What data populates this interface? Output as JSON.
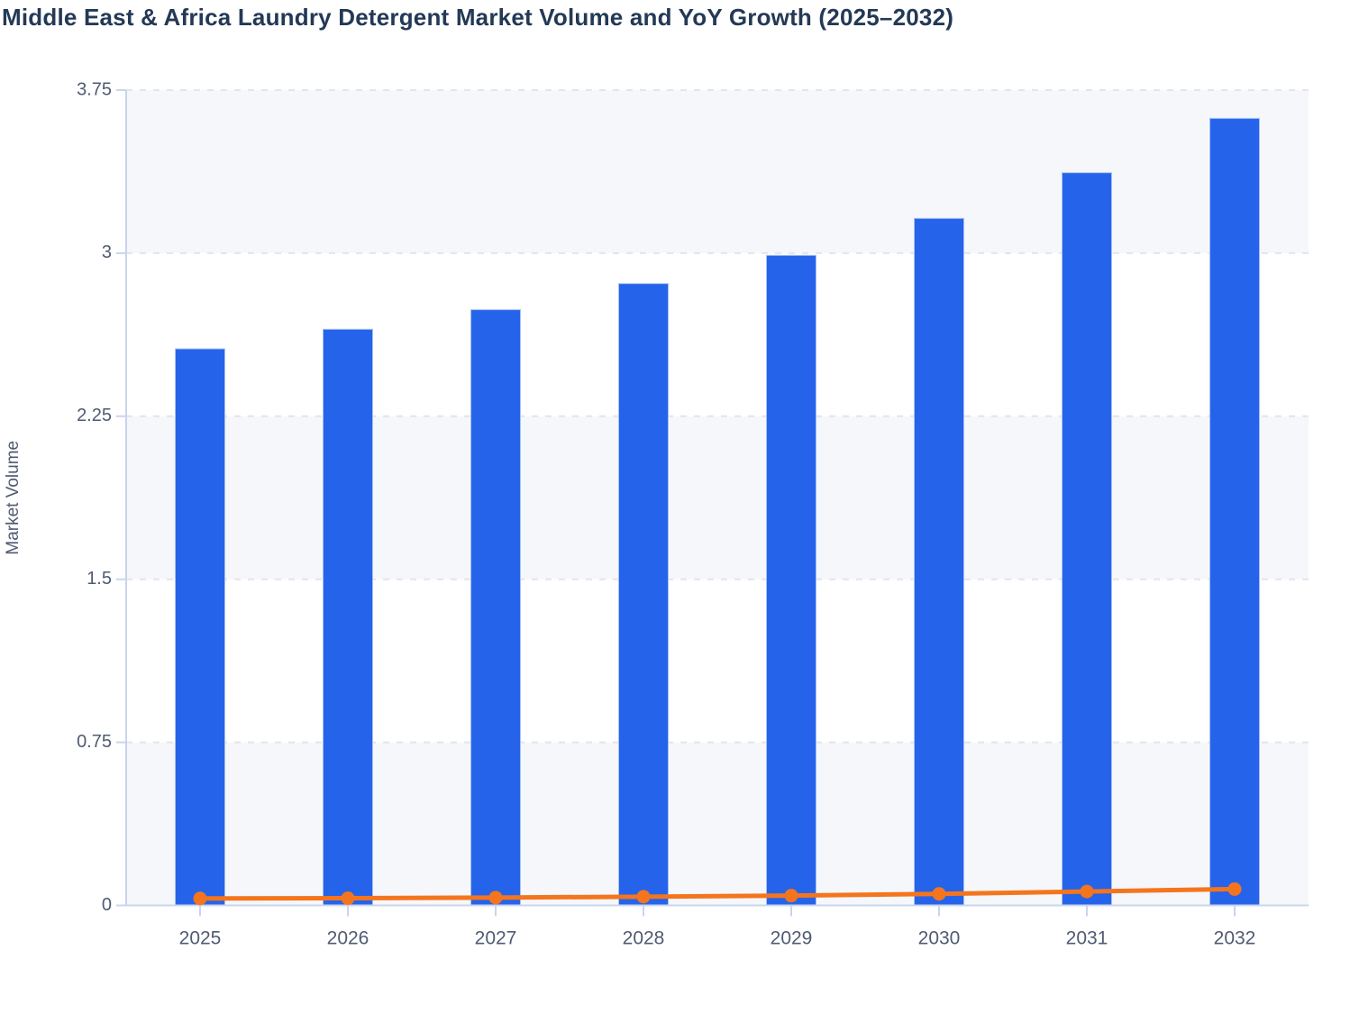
{
  "chart_data": {
    "type": "bar",
    "combo": "bar+line",
    "title": "Middle East & Africa Laundry Detergent Market Volume and YoY Growth (2025–2032)",
    "categories": [
      "2025",
      "2026",
      "2027",
      "2028",
      "2029",
      "2030",
      "2031",
      "2032"
    ],
    "series": [
      {
        "name": "Market Volume",
        "type": "bar",
        "values": [
          2.56,
          2.65,
          2.74,
          2.86,
          2.99,
          3.16,
          3.37,
          3.62
        ],
        "color": "#2563eb",
        "bar_border_color": "#a7c1f2"
      },
      {
        "name": "YoY Growth",
        "type": "line",
        "values_pct": [
          3.2,
          3.3,
          3.6,
          4.0,
          4.5,
          5.3,
          6.4,
          7.5
        ],
        "color": "#f4751d",
        "plotted_as": "fraction of volume axis (pct/100)"
      }
    ],
    "xlabel": "",
    "ylabel": "Market Volume",
    "ylim": [
      0,
      3.75
    ],
    "y_tick_labels": [
      "0",
      "0.75",
      "1.5",
      "2.25",
      "3",
      "3.75"
    ],
    "x_tick_labels": [
      "2025",
      "2026",
      "2027",
      "2028",
      "2029",
      "2030",
      "2031",
      "2032"
    ],
    "grid": "horizontal dashed",
    "legend": "none",
    "plot_background": "alternating horizontal bands",
    "colors": {
      "title_text": "#233956",
      "axis_line": "#c9d4ee",
      "tick_text": "#4f5b73",
      "axis_title_text": "#4f5b73",
      "band_fill": "#f5f7fa",
      "gridline": "#e2e5ea",
      "page_background": "#ffffff"
    }
  }
}
